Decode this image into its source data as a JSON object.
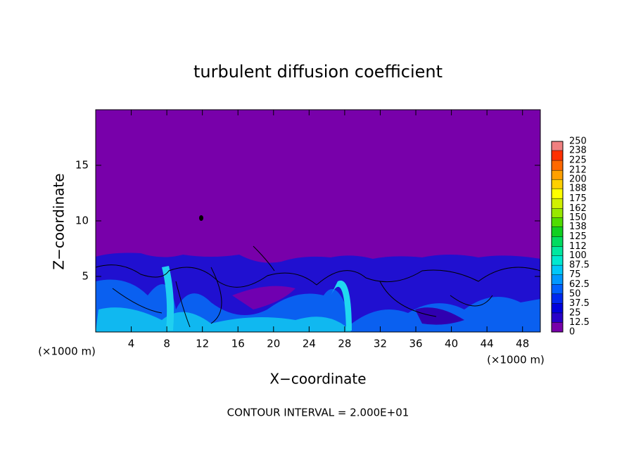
{
  "chart_data": {
    "type": "contour",
    "title": "turbulent diffusion coefficient",
    "x_label": "X−coordinate",
    "y_label": "Z−coordinate",
    "x_unit": "(×1000 m)",
    "y_unit": "(×1000 m)",
    "annotation": "CONTOUR INTERVAL = 2.000E+01",
    "xlim": [
      0,
      50
    ],
    "xticks": [
      4,
      8,
      12,
      16,
      20,
      24,
      28,
      32,
      36,
      40,
      44,
      48
    ],
    "ylim": [
      0,
      20
    ],
    "yticks": [
      5,
      10,
      15
    ],
    "colorbar": {
      "levels": [
        0,
        12.5,
        25,
        37.5,
        50,
        62.5,
        75,
        87.5,
        100,
        112,
        125,
        138,
        150,
        162,
        175,
        188,
        200,
        212,
        225,
        238,
        250
      ],
      "colors": [
        "#7800aa",
        "#2800c8",
        "#0000dc",
        "#0028f0",
        "#0060ff",
        "#0098ff",
        "#00c8f8",
        "#00e8d0",
        "#00e8a0",
        "#00dc60",
        "#10d020",
        "#50dc00",
        "#98e800",
        "#d0f000",
        "#ffff00",
        "#ffd000",
        "#ffa000",
        "#ff6800",
        "#ff3000",
        "#ff0000"
      ],
      "top_color": "#f08080"
    }
  }
}
